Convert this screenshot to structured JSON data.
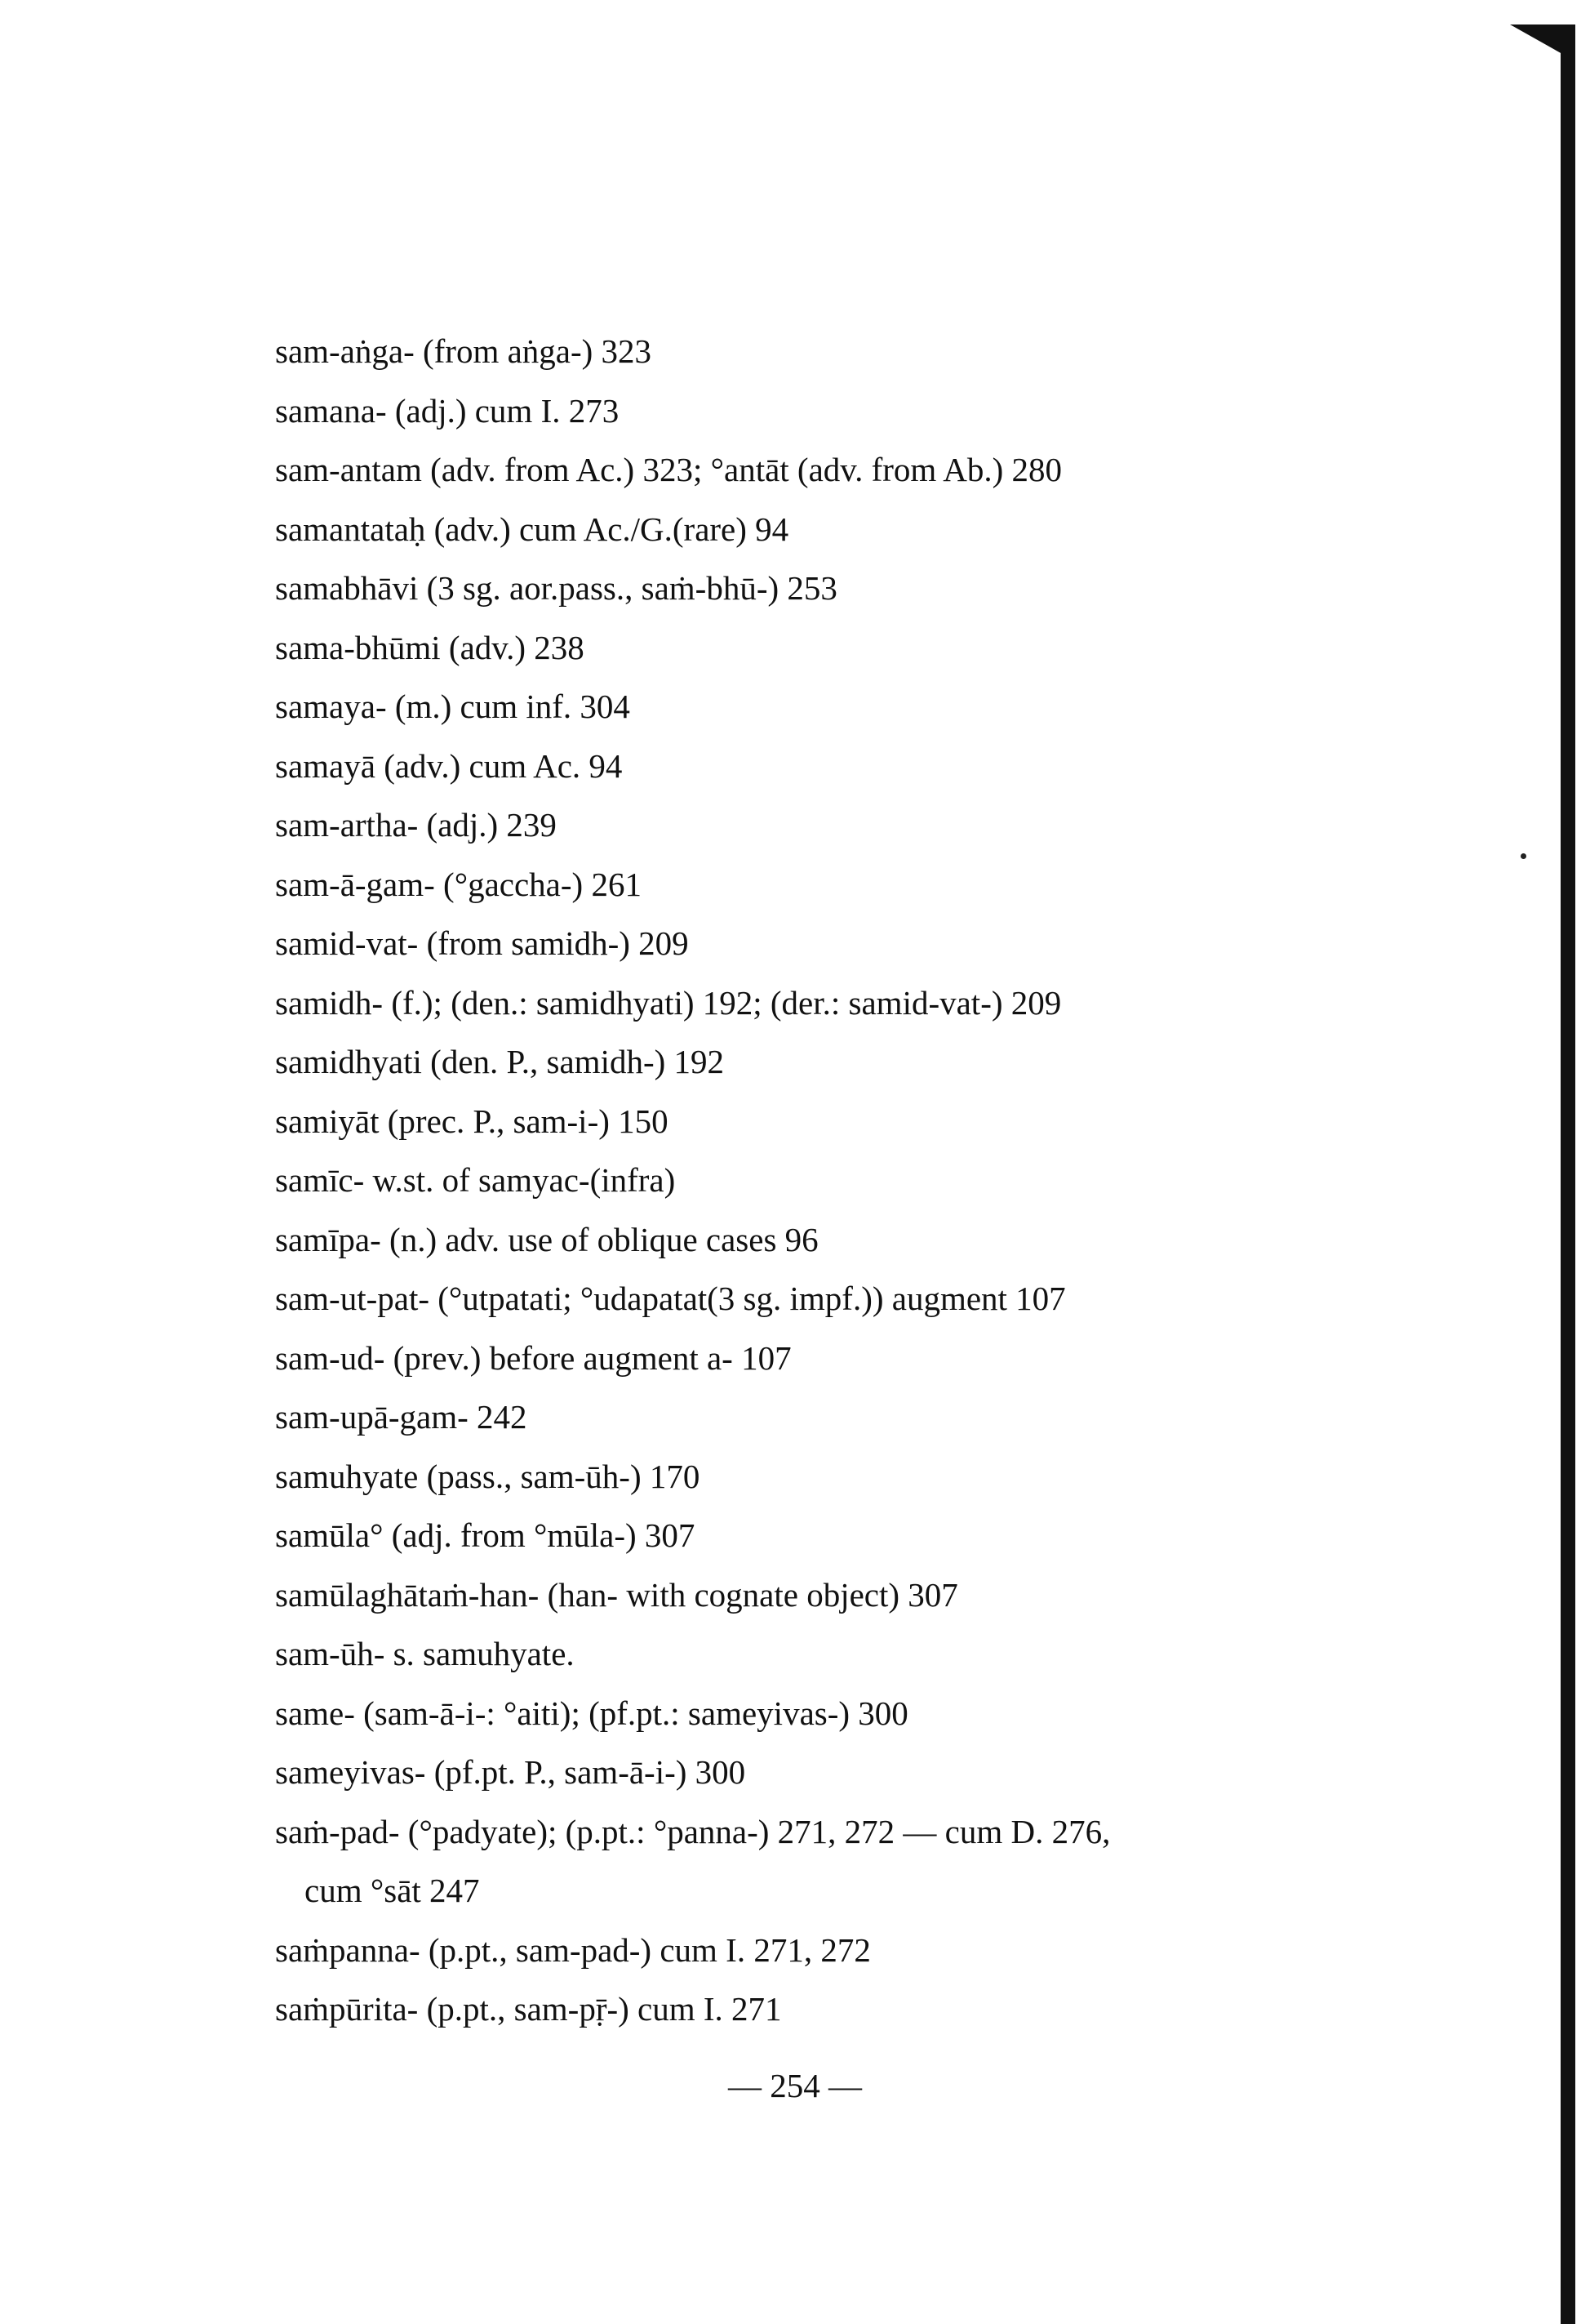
{
  "entries": [
    {
      "text": "sam-aṅga- (from aṅga-) 323"
    },
    {
      "text": "samana- (adj.) cum I. 273"
    },
    {
      "text": "sam-antam (adv. from Ac.) 323; °antāt (adv. from Ab.) 280"
    },
    {
      "text": "samantataḥ (adv.) cum Ac./G.(rare) 94"
    },
    {
      "text": "samabhāvi (3 sg. aor.pass., saṁ-bhū-) 253"
    },
    {
      "text": "sama-bhūmi (adv.) 238"
    },
    {
      "text": "samaya- (m.) cum inf. 304"
    },
    {
      "text": "samayā (adv.) cum Ac. 94"
    },
    {
      "text": "sam-artha- (adj.) 239"
    },
    {
      "text": "sam-ā-gam- (°gaccha-) 261"
    },
    {
      "text": "samid-vat- (from samidh-) 209"
    },
    {
      "text": "samidh- (f.); (den.: samidhyati) 192; (der.: samid-vat-) 209"
    },
    {
      "text": "samidhyati (den. P., samidh-) 192"
    },
    {
      "text": "samiyāt (prec. P., sam-i-) 150"
    },
    {
      "text": "samīc- w.st. of samyac-(infra)"
    },
    {
      "text": "samīpa- (n.) adv. use of oblique cases 96"
    },
    {
      "text": "sam-ut-pat- (°utpatati; °udapatat(3 sg. impf.)) augment 107"
    },
    {
      "text": "sam-ud- (prev.) before augment a- 107"
    },
    {
      "text": "sam-upā-gam- 242"
    },
    {
      "text": "samuhyate (pass., sam-ūh-) 170"
    },
    {
      "text": "samūla° (adj. from °mūla-) 307"
    },
    {
      "text": "samūlaghātaṁ-han- (han- with cognate object) 307"
    },
    {
      "text": "sam-ūh- s. samuhyate."
    },
    {
      "text": "same- (sam-ā-i-: °aiti); (pf.pt.: sameyivas-) 300"
    },
    {
      "text": "sameyivas- (pf.pt. P., sam-ā-i-) 300"
    },
    {
      "text": "saṁ-pad- (°padyate); (p.pt.: °panna-) 271, 272 — cum D. 276,"
    },
    {
      "text": "cum °sāt 247",
      "continuation": true
    },
    {
      "text": "saṁpanna- (p.pt., sam-pad-) cum I. 271, 272"
    },
    {
      "text": "saṁpūrita- (p.pt., sam-pṝ-) cum I. 271"
    }
  ],
  "page_number": "— 254 —"
}
